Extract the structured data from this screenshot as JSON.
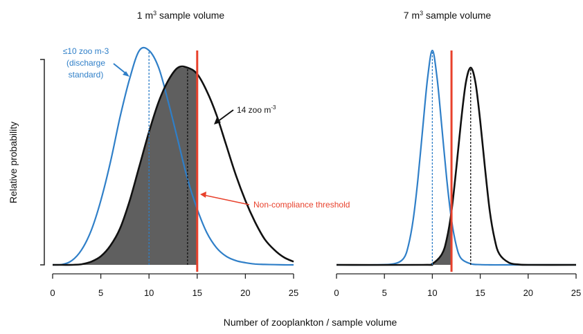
{
  "colors": {
    "blue": "#2f7fc8",
    "black": "#111111",
    "red": "#e8412c",
    "fill": "#5f5f5f"
  },
  "ylabel": "Relative probability",
  "xlabel": "Number of zooplankton / sample volume",
  "chart_data": [
    {
      "type": "line",
      "title": {
        "pre": "1 m",
        "sup": "3",
        "post": " sample volume"
      },
      "xlim": [
        0,
        25
      ],
      "xticks": [
        0,
        5,
        10,
        15,
        20,
        25
      ],
      "ylim": [
        0,
        1
      ],
      "series": [
        {
          "x": [
            0,
            1,
            2,
            3,
            4,
            5,
            6,
            7,
            8,
            9,
            10,
            11,
            12,
            13,
            14,
            15,
            16,
            17,
            18,
            19,
            20,
            21,
            22,
            23,
            24,
            25
          ],
          "y": [
            0.0,
            0.002,
            0.02,
            0.07,
            0.16,
            0.3,
            0.48,
            0.69,
            0.87,
            1.0,
            1.0,
            0.92,
            0.76,
            0.58,
            0.4,
            0.26,
            0.15,
            0.08,
            0.04,
            0.02,
            0.01,
            0.004,
            0.002,
            0.001,
            0.0,
            0.0
          ],
          "color": "#2f7fc8"
        },
        {
          "x": [
            0,
            1,
            2,
            3,
            4,
            5,
            6,
            7,
            8,
            9,
            10,
            11,
            12,
            13,
            14,
            15,
            16,
            17,
            18,
            19,
            20,
            21,
            22,
            23,
            24,
            25
          ],
          "y": [
            0.0,
            0.0,
            0.0,
            0.003,
            0.015,
            0.04,
            0.09,
            0.17,
            0.3,
            0.46,
            0.62,
            0.76,
            0.86,
            0.92,
            0.92,
            0.89,
            0.81,
            0.7,
            0.56,
            0.42,
            0.3,
            0.2,
            0.12,
            0.07,
            0.035,
            0.015
          ],
          "color": "#111111"
        }
      ],
      "shaded_series": 1,
      "shade_range": [
        0,
        15
      ],
      "mean_lines": [
        {
          "x": 10,
          "color": "#2f7fc8",
          "y": 1.0
        },
        {
          "x": 14,
          "color": "#111111",
          "y": 0.92
        }
      ],
      "threshold": 15,
      "threshold_color": "#e8412c",
      "annotations": [
        {
          "lines": [
            "≤10 zoo m-3",
            "(discharge",
            "standard)"
          ],
          "color": "blue"
        },
        {
          "text": "14 zoo m",
          "sup": "-3",
          "color": "black"
        },
        {
          "text": "Non-compliance threshold",
          "color": "red"
        }
      ]
    },
    {
      "type": "line",
      "title": {
        "pre": "7 m",
        "sup": "3",
        "post": " sample volume"
      },
      "xlim": [
        0,
        25
      ],
      "xticks": [
        0,
        5,
        10,
        15,
        20,
        25
      ],
      "ylim": [
        0,
        1
      ],
      "series": [
        {
          "x": [
            0,
            4,
            6,
            7,
            7.5,
            8,
            8.5,
            9,
            9.5,
            10,
            10.5,
            11,
            11.5,
            12,
            12.5,
            13,
            14,
            15,
            16,
            18,
            20,
            25
          ],
          "y": [
            0.0,
            0.0,
            0.005,
            0.03,
            0.09,
            0.21,
            0.4,
            0.64,
            0.87,
            1.0,
            0.87,
            0.64,
            0.4,
            0.21,
            0.09,
            0.03,
            0.005,
            0.001,
            0.0,
            0.0,
            0.0,
            0.0
          ],
          "color": "#2f7fc8"
        },
        {
          "x": [
            0,
            9,
            10,
            11,
            11.5,
            12,
            12.5,
            13,
            13.5,
            14,
            14.5,
            15,
            15.5,
            16,
            16.5,
            17,
            18,
            19,
            20,
            25
          ],
          "y": [
            0.0,
            0.0,
            0.005,
            0.05,
            0.12,
            0.25,
            0.45,
            0.67,
            0.85,
            0.92,
            0.85,
            0.67,
            0.45,
            0.25,
            0.12,
            0.05,
            0.01,
            0.002,
            0.0,
            0.0
          ],
          "color": "#111111"
        }
      ],
      "shaded_series": 1,
      "shade_range": [
        0,
        12
      ],
      "mean_lines": [
        {
          "x": 10,
          "color": "#2f7fc8",
          "y": 1.0
        },
        {
          "x": 14,
          "color": "#111111",
          "y": 0.92
        }
      ],
      "threshold": 12,
      "threshold_color": "#e8412c"
    }
  ]
}
